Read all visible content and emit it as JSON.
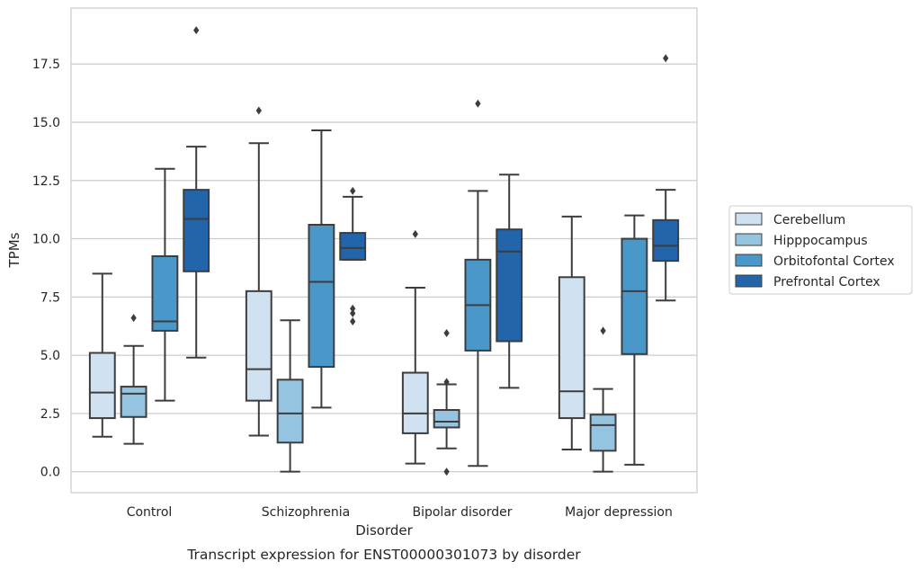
{
  "chart_data": {
    "type": "box",
    "caption": "Transcript expression for ENST00000301073 by disorder",
    "xlabel": "Disorder",
    "ylabel": "TPMs",
    "ylim": [
      -0.9,
      19.9
    ],
    "yticks": [
      0.0,
      2.5,
      5.0,
      7.5,
      10.0,
      12.5,
      15.0,
      17.5
    ],
    "ytick_labels": [
      "0.0",
      "2.5",
      "5.0",
      "7.5",
      "10.0",
      "12.5",
      "15.0",
      "17.5"
    ],
    "grid": "horizontal",
    "legend_position": "right",
    "categories": [
      "Control",
      "Schizophrenia",
      "Bipolar disorder",
      "Major depression"
    ],
    "series": [
      {
        "name": "Cerebellum",
        "color": "#d0e1f2",
        "boxes": [
          {
            "whisker_low": 1.5,
            "q1": 2.3,
            "median": 3.4,
            "q3": 5.1,
            "whisker_high": 8.5,
            "outliers": []
          },
          {
            "whisker_low": 1.55,
            "q1": 3.05,
            "median": 4.4,
            "q3": 7.75,
            "whisker_high": 14.1,
            "outliers": [
              15.5
            ]
          },
          {
            "whisker_low": 0.35,
            "q1": 1.65,
            "median": 2.5,
            "q3": 4.25,
            "whisker_high": 7.9,
            "outliers": [
              10.2
            ]
          },
          {
            "whisker_low": 0.95,
            "q1": 2.3,
            "median": 3.45,
            "q3": 8.35,
            "whisker_high": 10.95,
            "outliers": []
          }
        ]
      },
      {
        "name": "Hipppocampus",
        "color": "#94c4df",
        "boxes": [
          {
            "whisker_low": 1.2,
            "q1": 2.35,
            "median": 3.35,
            "q3": 3.65,
            "whisker_high": 5.4,
            "outliers": [
              6.6
            ]
          },
          {
            "whisker_low": 0.0,
            "q1": 1.25,
            "median": 2.5,
            "q3": 3.95,
            "whisker_high": 6.5,
            "outliers": []
          },
          {
            "whisker_low": 1.0,
            "q1": 1.9,
            "median": 2.15,
            "q3": 2.65,
            "whisker_high": 3.75,
            "outliers": [
              0.0,
              3.85,
              5.95
            ]
          },
          {
            "whisker_low": 0.0,
            "q1": 0.9,
            "median": 2.0,
            "q3": 2.45,
            "whisker_high": 3.55,
            "outliers": [
              6.05
            ]
          }
        ]
      },
      {
        "name": "Orbitofontal Cortex",
        "color": "#4a98c9",
        "boxes": [
          {
            "whisker_low": 3.05,
            "q1": 6.05,
            "median": 6.45,
            "q3": 9.25,
            "whisker_high": 13.0,
            "outliers": []
          },
          {
            "whisker_low": 2.75,
            "q1": 4.5,
            "median": 8.15,
            "q3": 10.6,
            "whisker_high": 14.65,
            "outliers": []
          },
          {
            "whisker_low": 0.25,
            "q1": 5.2,
            "median": 7.15,
            "q3": 9.1,
            "whisker_high": 12.05,
            "outliers": [
              15.8
            ]
          },
          {
            "whisker_low": 0.3,
            "q1": 5.05,
            "median": 7.75,
            "q3": 10.0,
            "whisker_high": 11.0,
            "outliers": []
          }
        ]
      },
      {
        "name": "Prefrontal Cortex",
        "color": "#2265ab",
        "boxes": [
          {
            "whisker_low": 4.9,
            "q1": 8.6,
            "median": 10.85,
            "q3": 12.1,
            "whisker_high": 13.95,
            "outliers": [
              18.95
            ]
          },
          {
            "whisker_low": 9.1,
            "q1": 9.1,
            "median": 9.6,
            "q3": 10.25,
            "whisker_high": 11.8,
            "outliers": [
              12.05,
              7.0,
              6.8,
              6.45
            ]
          },
          {
            "whisker_low": 3.6,
            "q1": 5.6,
            "median": 9.45,
            "q3": 10.4,
            "whisker_high": 12.75,
            "outliers": []
          },
          {
            "whisker_low": 7.35,
            "q1": 9.05,
            "median": 9.7,
            "q3": 10.8,
            "whisker_high": 12.1,
            "outliers": [
              17.75
            ]
          }
        ]
      }
    ]
  }
}
